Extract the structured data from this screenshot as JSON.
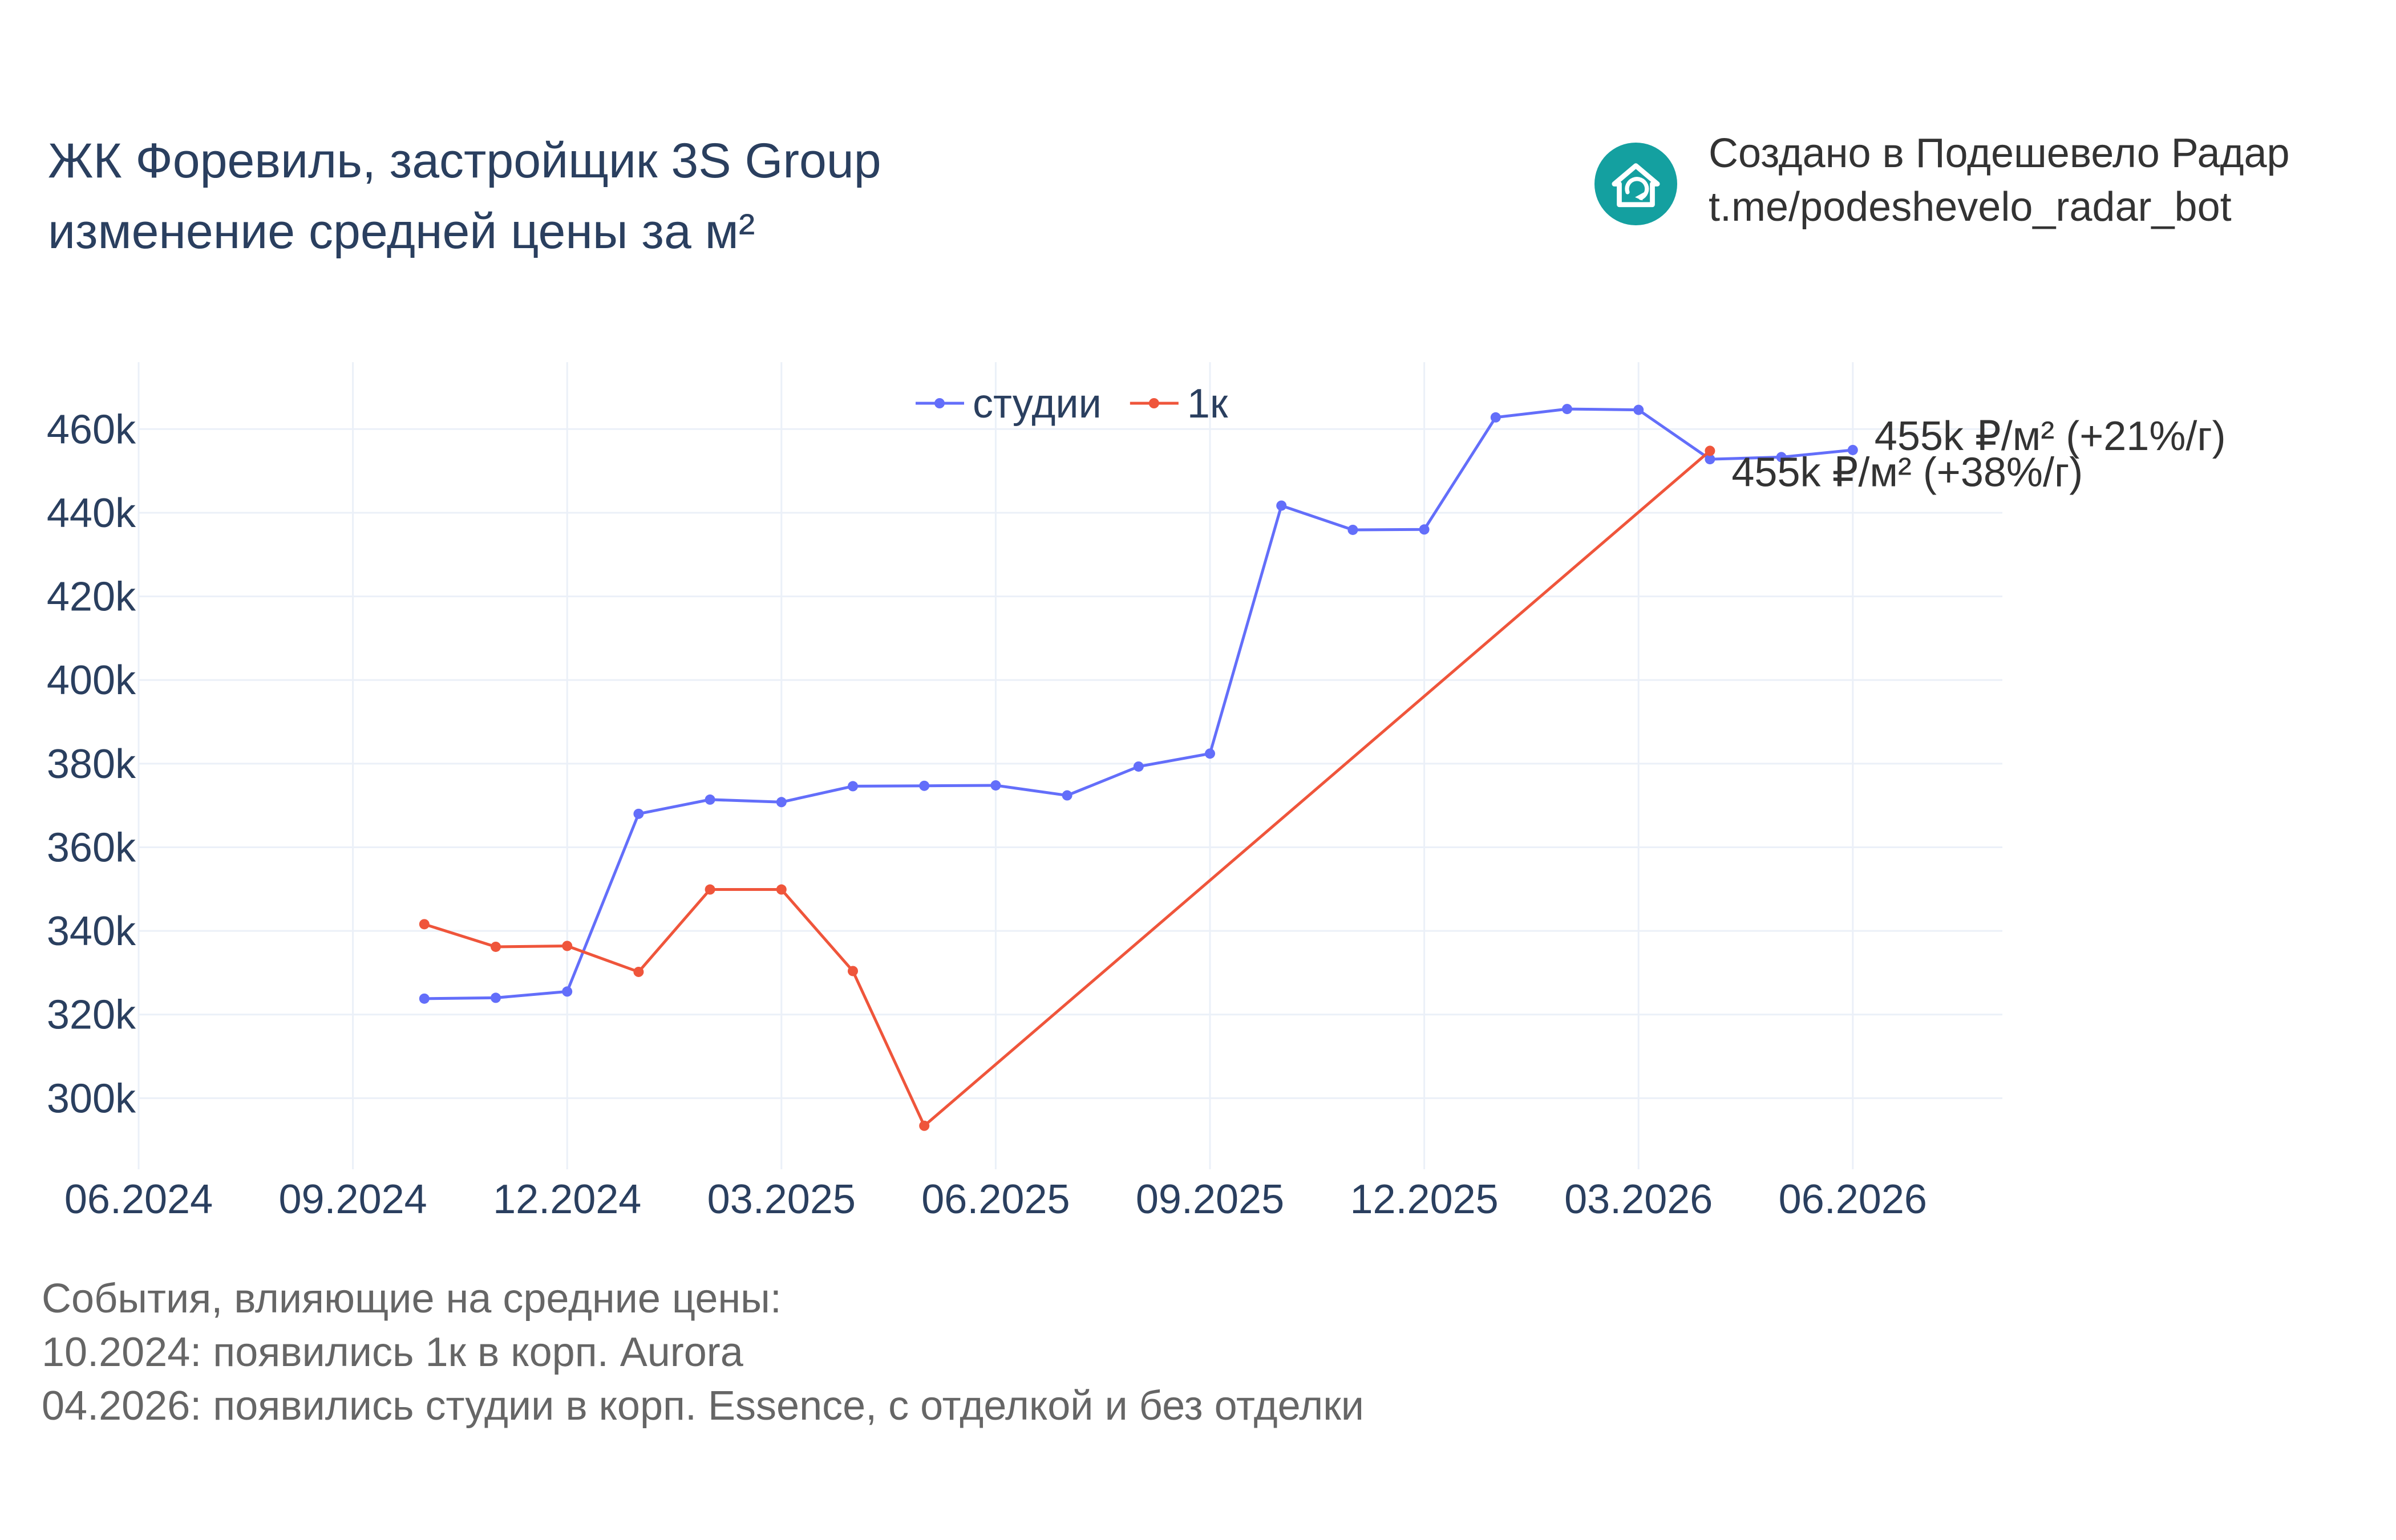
{
  "title": {
    "line1": "ЖК Форевиль, застройщик 3S Group",
    "line2": "изменение средней цены за м²"
  },
  "branding": {
    "line1": "Создано в Подешевело Радар",
    "line2": "t.me/podeshevelo_radar_bot",
    "logo_icon": "house-refresh-icon",
    "logo_color": "#14a0a0"
  },
  "events": {
    "heading": "События, влияющие на средние цены:",
    "items": [
      "10.2024: появились 1к в корп. Aurora",
      "04.2026: появились студии в корп. Essence, с отделкой и без отделки"
    ]
  },
  "chart_data": {
    "type": "line",
    "x_tick_labels": [
      "06.2024",
      "09.2024",
      "12.2024",
      "03.2025",
      "06.2025",
      "09.2025",
      "12.2025",
      "03.2026",
      "06.2026"
    ],
    "y_tick_labels": [
      "300k",
      "320k",
      "340k",
      "360k",
      "380k",
      "400k",
      "420k",
      "440k",
      "460k"
    ],
    "y_ticks": [
      300000,
      320000,
      340000,
      360000,
      380000,
      400000,
      420000,
      440000,
      460000
    ],
    "ylim": [
      283000,
      476000
    ],
    "grid": true,
    "legend_position": "top-center",
    "series": [
      {
        "name": "студии",
        "color": "#636efa",
        "x": [
          "2024-10",
          "2024-11",
          "2024-12",
          "2025-01",
          "2025-02",
          "2025-03",
          "2025-04",
          "2025-05",
          "2025-06",
          "2025-07",
          "2025-08",
          "2025-09",
          "2025-10",
          "2025-11",
          "2025-12",
          "2026-01",
          "2026-02",
          "2026-03",
          "2026-04",
          "2026-05",
          "2026-06"
        ],
        "values": [
          323800,
          324000,
          325500,
          368000,
          371400,
          370800,
          374600,
          374700,
          374800,
          372400,
          379300,
          382400,
          441700,
          435900,
          436000,
          462800,
          464800,
          464600,
          452800,
          453300,
          455000
        ],
        "end_label": "455k ₽/м² (+21%/г)"
      },
      {
        "name": "1к",
        "color": "#ef553b",
        "x": [
          "2024-10",
          "2024-11",
          "2024-12",
          "2025-01",
          "2025-02",
          "2025-03",
          "2025-04",
          "2025-05",
          "2026-04"
        ],
        "values": [
          341600,
          336200,
          336400,
          330200,
          349900,
          349900,
          330400,
          293400,
          454800
        ],
        "end_label": "455k ₽/м² (+38%/г)"
      }
    ]
  }
}
